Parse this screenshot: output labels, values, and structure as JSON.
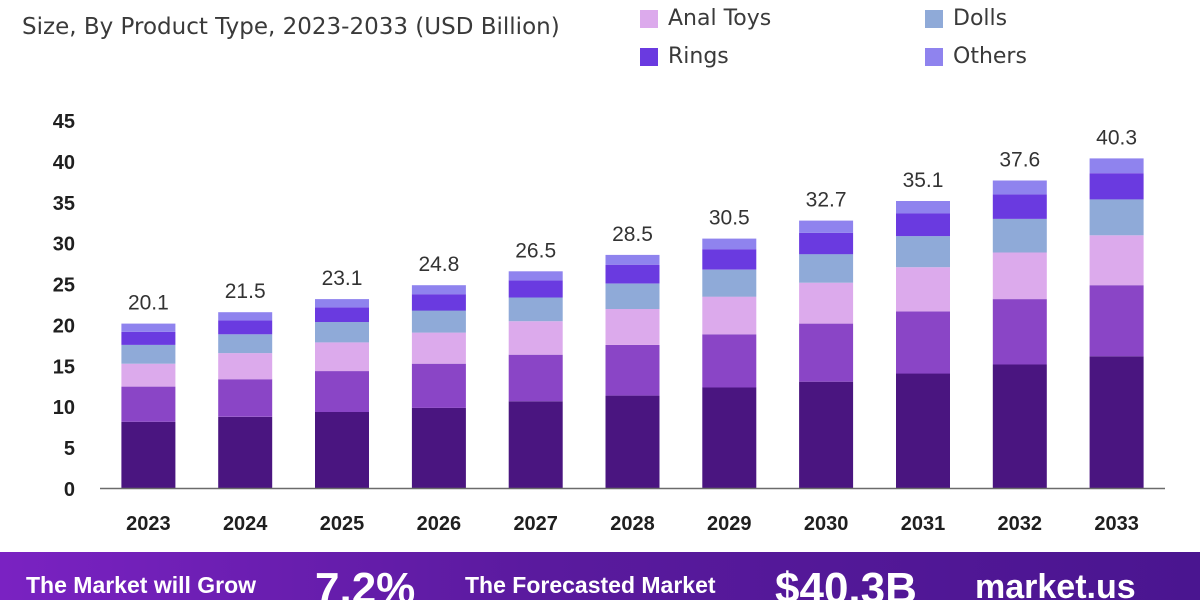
{
  "chart_data": {
    "type": "bar",
    "stacked": true,
    "title": "",
    "subtitle": "Size, By Product Type, 2023-2033 (USD Billion)",
    "xlabel": "",
    "ylabel": "",
    "ylim": [
      0,
      45
    ],
    "yticks": [
      "0",
      "5",
      "10",
      "15",
      "20",
      "25",
      "30",
      "35",
      "40",
      "45"
    ],
    "categories": [
      "2023",
      "2024",
      "2025",
      "2026",
      "2027",
      "2028",
      "2029",
      "2030",
      "2031",
      "2032",
      "2033"
    ],
    "totals": [
      20.1,
      21.5,
      23.1,
      24.8,
      26.5,
      28.5,
      30.5,
      32.7,
      35.1,
      37.6,
      40.3
    ],
    "total_labels": [
      "20.1",
      "21.5",
      "23.1",
      "24.8",
      "26.5",
      "28.5",
      "30.5",
      "32.7",
      "35.1",
      "37.6",
      "40.3"
    ],
    "grid": false,
    "legend_position": "top-right",
    "series": [
      {
        "name": "",
        "color": "#4a1580",
        "values": [
          8.1,
          8.7,
          9.3,
          9.8,
          10.6,
          11.3,
          12.3,
          13.0,
          14.0,
          15.1,
          16.1
        ]
      },
      {
        "name": "",
        "color": "#8a45c6",
        "values": [
          4.3,
          4.6,
          5.0,
          5.4,
          5.7,
          6.2,
          6.5,
          7.1,
          7.6,
          8.0,
          8.7
        ]
      },
      {
        "name": "Anal Toys",
        "color": "#dcaaec",
        "values": [
          2.8,
          3.2,
          3.5,
          3.8,
          4.1,
          4.4,
          4.6,
          5.0,
          5.4,
          5.7,
          6.1
        ]
      },
      {
        "name": "Dolls",
        "color": "#8faad8",
        "values": [
          2.3,
          2.3,
          2.5,
          2.7,
          2.9,
          3.1,
          3.3,
          3.5,
          3.8,
          4.1,
          4.4
        ]
      },
      {
        "name": "Rings",
        "color": "#6a3ae0",
        "values": [
          1.6,
          1.7,
          1.8,
          2.0,
          2.1,
          2.3,
          2.5,
          2.6,
          2.8,
          3.0,
          3.2
        ]
      },
      {
        "name": "Others",
        "color": "#8f83ee",
        "values": [
          1.0,
          1.0,
          1.0,
          1.1,
          1.1,
          1.2,
          1.3,
          1.5,
          1.5,
          1.7,
          1.8
        ]
      }
    ]
  },
  "banner": {
    "label_growth": "The Market will Grow",
    "value_growth": "7.2%",
    "label_forecast": "The Forecasted Market",
    "value_forecast": "$40.3B",
    "brand": "market.us"
  },
  "colors": {
    "banner_start": "#7a22c2",
    "banner_end": "#4a1590",
    "axis": "#555555"
  },
  "icons": {
    "brand_logo": "market-us-logo-icon"
  }
}
